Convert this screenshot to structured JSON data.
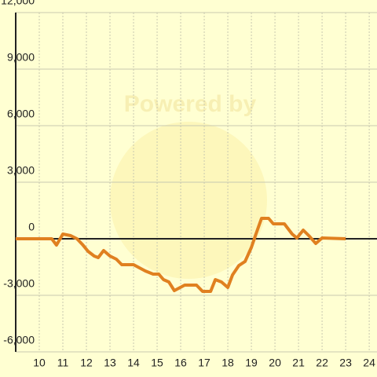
{
  "chart_data": {
    "type": "line",
    "watermark": "Powered by",
    "x": [
      9,
      10.53,
      10.73,
      11.0,
      11.33,
      11.6,
      11.83,
      12.07,
      12.33,
      12.5,
      12.73,
      13.0,
      13.27,
      13.5,
      14.0,
      14.5,
      14.83,
      15.07,
      15.27,
      15.5,
      15.73,
      16.17,
      16.67,
      16.93,
      17.27,
      17.47,
      17.73,
      18.0,
      18.2,
      18.47,
      18.73,
      19.0,
      19.17,
      19.43,
      19.73,
      19.93,
      20.4,
      20.73,
      20.93,
      21.2,
      21.47,
      21.73,
      22.0,
      23.0
    ],
    "series": [
      {
        "color": "#e08020",
        "values": [
          0,
          0,
          -333,
          250,
          167,
          0,
          -300,
          -667,
          -917,
          -1000,
          -625,
          -917,
          -1083,
          -1375,
          -1375,
          -1708,
          -1875,
          -1875,
          -2167,
          -2292,
          -2750,
          -2458,
          -2458,
          -2792,
          -2792,
          -2167,
          -2292,
          -2583,
          -1917,
          -1417,
          -1208,
          -458,
          167,
          1083,
          1083,
          792,
          792,
          250,
          42,
          458,
          125,
          -250,
          42,
          0
        ]
      }
    ],
    "xlim": [
      9,
      24.33
    ],
    "ylim": [
      -6000,
      12000
    ],
    "xticks": [
      10,
      11,
      12,
      13,
      14,
      15,
      16,
      17,
      18,
      19,
      20,
      21,
      22,
      23,
      24
    ],
    "yticks": [
      {
        "value": -6000,
        "label": "-6,000"
      },
      {
        "value": -3000,
        "label": "-3,000"
      },
      0,
      {
        "value": 3000,
        "label": "3,000"
      },
      {
        "value": 6000,
        "label": "6,000"
      },
      {
        "value": 9000,
        "label": "9,000"
      },
      {
        "value": 12000,
        "label": "12,000"
      }
    ],
    "grid": true
  }
}
